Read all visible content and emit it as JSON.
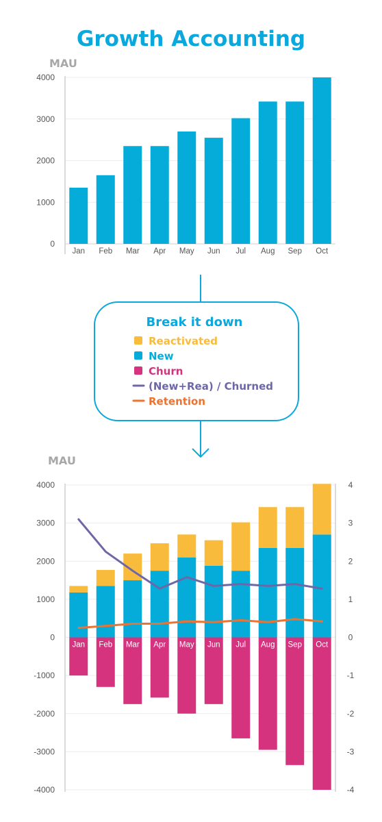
{
  "title": "Growth Accounting",
  "legend": {
    "title": "Break it down",
    "items": [
      {
        "label": "Reactivated",
        "color": "#f9bb3c",
        "shape": "square"
      },
      {
        "label": "New",
        "color": "#06acd9",
        "shape": "square"
      },
      {
        "label": "Churn",
        "color": "#d6337f",
        "shape": "square"
      },
      {
        "label": "(New+Rea) / Churned",
        "color": "#6d67a8",
        "shape": "line"
      },
      {
        "label": "Retention",
        "color": "#ec7332",
        "shape": "line"
      }
    ]
  },
  "chart_data": [
    {
      "type": "bar",
      "ylabel": "MAU",
      "categories": [
        "Jan",
        "Feb",
        "Mar",
        "Apr",
        "May",
        "Jun",
        "Jul",
        "Aug",
        "Sep",
        "Oct"
      ],
      "values": [
        1350,
        1650,
        2350,
        2350,
        2700,
        2550,
        3020,
        3420,
        3420,
        4000
      ],
      "ylim": [
        0,
        4000
      ],
      "yticks": [
        0,
        1000,
        2000,
        3000,
        4000
      ],
      "color": "#06acd9"
    },
    {
      "type": "bar",
      "stacked": true,
      "ylabel": "MAU",
      "categories": [
        "Jan",
        "Feb",
        "Mar",
        "Apr",
        "May",
        "Jun",
        "Jul",
        "Aug",
        "Sep",
        "Oct"
      ],
      "ylim": [
        -4000,
        4000
      ],
      "yticks": [
        -4000,
        -3000,
        -2000,
        -1000,
        0,
        1000,
        2000,
        3000,
        4000
      ],
      "y2lim": [
        -4,
        4
      ],
      "y2ticks": [
        -4,
        -3,
        -2,
        -1,
        0,
        1,
        2,
        3,
        4
      ],
      "series": [
        {
          "name": "New",
          "color": "#06acd9",
          "axis": "left",
          "values": [
            1180,
            1350,
            1500,
            1750,
            2100,
            1880,
            1750,
            2350,
            2350,
            2700
          ]
        },
        {
          "name": "Reactivated",
          "color": "#f9bb3c",
          "axis": "left",
          "values": [
            170,
            420,
            700,
            720,
            600,
            670,
            1270,
            1070,
            1070,
            1330
          ]
        },
        {
          "name": "Churn",
          "color": "#d6337f",
          "axis": "left",
          "values": [
            -1000,
            -1300,
            -1750,
            -1580,
            -2000,
            -1750,
            -2650,
            -2950,
            -3350,
            -4000
          ]
        },
        {
          "name": "(New+Rea) / Churned",
          "color": "#6d67a8",
          "axis": "right",
          "type": "line",
          "values": [
            3.1,
            2.25,
            1.75,
            1.28,
            1.58,
            1.35,
            1.4,
            1.35,
            1.4,
            1.28
          ]
        },
        {
          "name": "Retention",
          "color": "#ec7332",
          "axis": "right",
          "type": "line",
          "values": [
            0.25,
            0.3,
            0.36,
            0.36,
            0.42,
            0.4,
            0.45,
            0.4,
            0.48,
            0.42
          ]
        }
      ]
    }
  ]
}
